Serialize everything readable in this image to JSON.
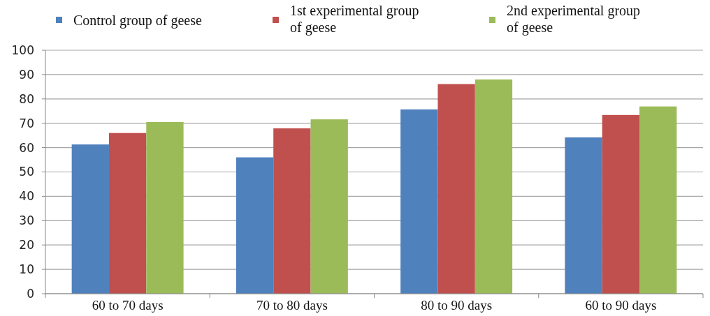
{
  "chart_data": {
    "type": "bar",
    "categories": [
      "60 to 70 days",
      "70 to 80 days",
      "80 to 90 days",
      "60 to 90 days"
    ],
    "series": [
      {
        "name": "Control group of geese",
        "color": "#4f81bd",
        "values": [
          61.3,
          56.0,
          75.7,
          64.2
        ]
      },
      {
        "name": "1st experimental group of geese",
        "color": "#c0504d",
        "values": [
          66.0,
          67.9,
          86.1,
          73.4
        ]
      },
      {
        "name": "2nd experimental group of geese",
        "color": "#9bbb59",
        "values": [
          70.5,
          71.6,
          88.0,
          76.9
        ]
      }
    ],
    "ylim": [
      0,
      100
    ],
    "yticks": [
      0,
      10,
      20,
      30,
      40,
      50,
      60,
      70,
      80,
      90,
      100
    ],
    "grid": "y",
    "legend": "top"
  }
}
